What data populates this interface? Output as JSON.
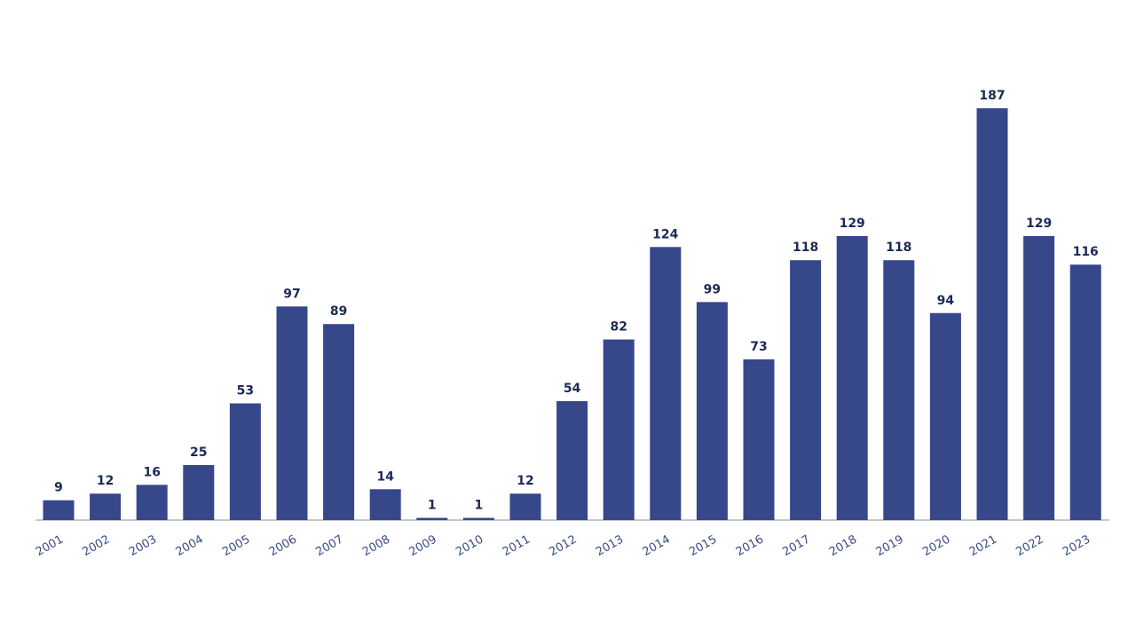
{
  "chart_data": {
    "type": "bar",
    "categories": [
      "2001",
      "2002",
      "2003",
      "2004",
      "2005",
      "2006",
      "2007",
      "2008",
      "2009",
      "2010",
      "2011",
      "2012",
      "2013",
      "2014",
      "2015",
      "2016",
      "2017",
      "2018",
      "2019",
      "2020",
      "2021",
      "2022",
      "2023"
    ],
    "values": [
      9,
      12,
      16,
      25,
      53,
      97,
      89,
      14,
      1,
      1,
      12,
      54,
      82,
      124,
      99,
      73,
      118,
      129,
      118,
      94,
      187,
      129,
      116
    ],
    "color": "#36478a"
  }
}
